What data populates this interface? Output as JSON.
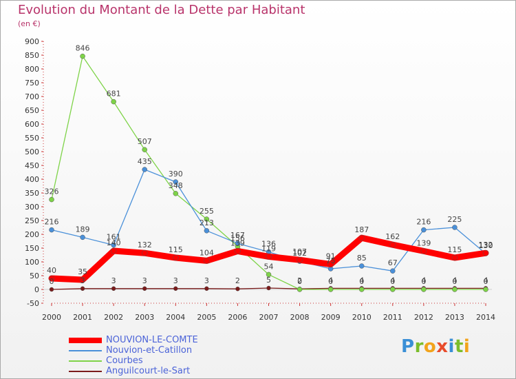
{
  "chart_data": {
    "type": "line",
    "title": "Evolution du Montant de la Dette par Habitant",
    "subtitle": "(en €)",
    "xlabel": "",
    "ylabel": "",
    "ylim": [
      -50,
      900
    ],
    "yticks": [
      -50,
      0,
      50,
      100,
      150,
      200,
      250,
      300,
      350,
      400,
      450,
      500,
      550,
      600,
      650,
      700,
      750,
      800,
      850,
      900
    ],
    "categories": [
      "2000",
      "2001",
      "2002",
      "2003",
      "2004",
      "2005",
      "2006",
      "2007",
      "2008",
      "2009",
      "2010",
      "2011",
      "2012",
      "2013",
      "2014"
    ],
    "grid": false,
    "series": [
      {
        "name": "NOUVION-LE-COMTE",
        "color": "#ff0000",
        "values": [
          40,
          35,
          140,
          132,
          115,
          104,
          139,
          119,
          107,
          91,
          187,
          162,
          139,
          115,
          132
        ]
      },
      {
        "name": "Nouvion-et-Catillon",
        "color": "#4a90d9",
        "values": [
          216,
          189,
          161,
          435,
          390,
          213,
          167,
          136,
          102,
          75,
          85,
          67,
          216,
          225,
          130
        ]
      },
      {
        "name": "Courbes",
        "color": "#7ed348",
        "values": [
          326,
          846,
          681,
          507,
          348,
          255,
          156,
          54,
          0,
          0,
          0,
          0,
          0,
          0,
          0
        ]
      },
      {
        "name": "Anguilcourt-le-Sart",
        "color": "#7a1a1a",
        "values": [
          0,
          3,
          3,
          3,
          3,
          3,
          2,
          5,
          2,
          4,
          4,
          4,
          4,
          4,
          4
        ]
      }
    ]
  },
  "logo": {
    "text": "Proxiti",
    "letters": [
      "P",
      "r",
      "o",
      "x",
      "i",
      "t",
      "i"
    ],
    "colors": [
      "#3a8fd6",
      "#7bbd2b",
      "#f2a31b",
      "#e84c2b",
      "#3a8fd6",
      "#7bbd2b",
      "#f2a31b"
    ]
  }
}
